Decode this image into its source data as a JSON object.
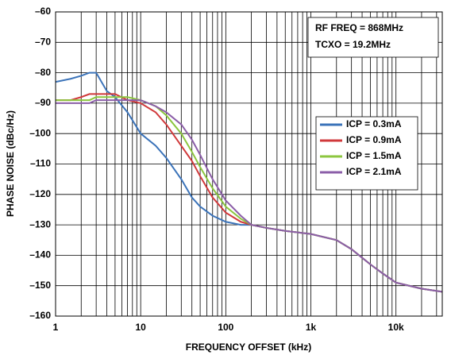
{
  "chart_data": {
    "type": "line",
    "xlabel": "FREQUENCY OFFSET (kHz)",
    "ylabel": "PHASE NOISE (dBc/Hz)",
    "annotations": [
      "RF FREQ = 868MHz",
      "TCXO = 19.2MHz"
    ],
    "x": [
      1,
      1.5,
      2,
      2.5,
      3,
      4,
      5,
      7,
      10,
      15,
      20,
      30,
      40,
      50,
      70,
      100,
      150,
      200,
      300,
      500,
      700,
      1000,
      2000,
      3000,
      5000,
      7000,
      10000,
      20000,
      35000
    ],
    "series": [
      {
        "name": "ICP = 0.3mA",
        "color": "#3b73b9",
        "values": [
          -83,
          -82,
          -81,
          -80,
          -80,
          -86,
          -88,
          -93,
          -100,
          -104,
          -108,
          -115,
          -121,
          -124,
          -127,
          -129,
          -130,
          -130,
          -131,
          -132,
          -132.5,
          -133,
          -135,
          -138,
          -143,
          -146,
          -149,
          -151,
          -152
        ]
      },
      {
        "name": "ICP = 0.9mA",
        "color": "#d0393b",
        "values": [
          -89,
          -89,
          -88,
          -87,
          -87,
          -87,
          -87,
          -89,
          -90,
          -93,
          -97,
          -104,
          -109,
          -114,
          -121,
          -126,
          -129,
          -130,
          -131,
          -132,
          -132.5,
          -133,
          -135,
          -138,
          -143,
          -146,
          -149,
          -151,
          -152
        ]
      },
      {
        "name": "ICP = 1.5mA",
        "color": "#8cc63f",
        "values": [
          -89,
          -89,
          -89,
          -89,
          -88,
          -88,
          -88,
          -88,
          -89,
          -91,
          -94,
          -100,
          -106,
          -111,
          -118,
          -124,
          -128,
          -130,
          -131,
          -132,
          -132.5,
          -133,
          -135,
          -138,
          -143,
          -146,
          -149,
          -151,
          -152
        ]
      },
      {
        "name": "ICP = 2.1mA",
        "color": "#8b5ea8",
        "values": [
          -90,
          -90,
          -90,
          -90,
          -89,
          -89,
          -89,
          -89,
          -89,
          -91,
          -93,
          -97,
          -102,
          -107,
          -115,
          -122,
          -127,
          -130,
          -131,
          -132,
          -132.5,
          -133,
          -135,
          -138,
          -143,
          -146,
          -149,
          -151,
          -152
        ]
      }
    ],
    "xscale": "log",
    "xlim": [
      1,
      35000
    ],
    "xticks": [
      1,
      10,
      100,
      {
        "value": 1000,
        "label": "1k"
      },
      {
        "value": 10000,
        "label": "10k"
      }
    ],
    "ylim": [
      -160,
      -60
    ],
    "yticks": [
      {
        "value": -160,
        "label": "–160"
      },
      {
        "value": -150,
        "label": "–150"
      },
      {
        "value": -140,
        "label": "–140"
      },
      {
        "value": -130,
        "label": "–130"
      },
      {
        "value": -120,
        "label": "–120"
      },
      {
        "value": -110,
        "label": "–110"
      },
      {
        "value": -100,
        "label": "–100"
      },
      {
        "value": -90,
        "label": "–90"
      },
      {
        "value": -80,
        "label": "–80"
      },
      {
        "value": -70,
        "label": "–70"
      },
      {
        "value": -60,
        "label": "–60"
      }
    ],
    "grid": true,
    "minor_grid": true
  }
}
